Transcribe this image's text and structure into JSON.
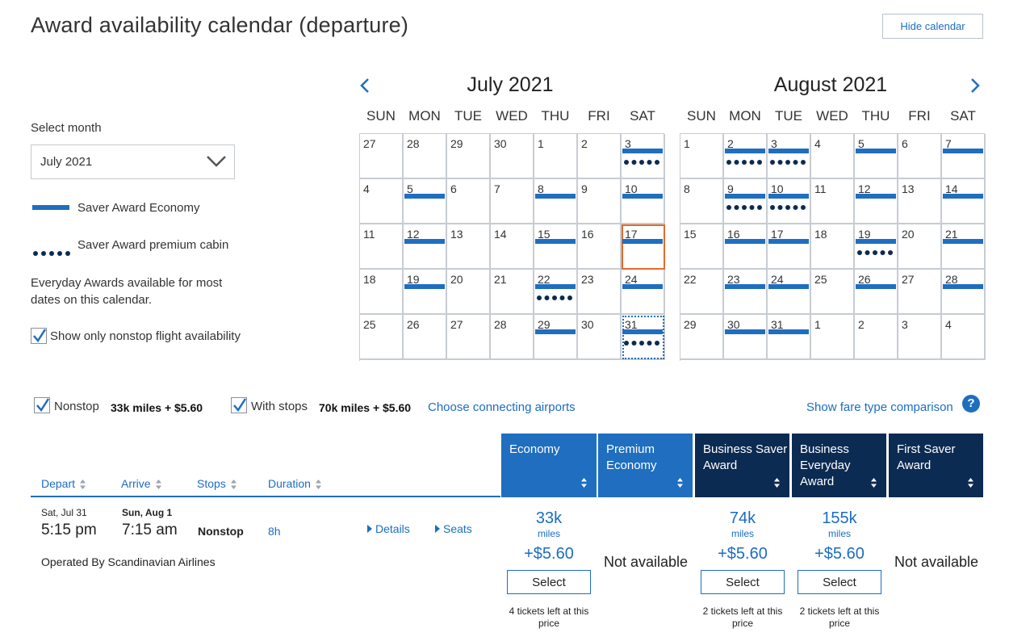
{
  "page": {
    "title": "Award availability calendar (departure)",
    "hide_calendar": "Hide calendar"
  },
  "sidebar": {
    "select_month_label": "Select month",
    "selected_month": "July 2021",
    "legend_economy": "Saver Award Economy",
    "legend_premium": "Saver Award premium cabin",
    "everyday_note": "Everyday Awards available for most dates on this calendar.",
    "nonstop_only": "Show only nonstop flight availability"
  },
  "colors": {
    "accent": "#1f6ebf",
    "dark_header": "#0c2b52",
    "selected_outline": "#e36a2c"
  },
  "calendar": {
    "weekdays": [
      "SUN",
      "MON",
      "TUE",
      "WED",
      "THU",
      "FRI",
      "SAT"
    ],
    "months": [
      {
        "title": "July 2021",
        "days": [
          {
            "d": "27",
            "e": false,
            "p": false
          },
          {
            "d": "28",
            "e": false,
            "p": false
          },
          {
            "d": "29",
            "e": false,
            "p": false
          },
          {
            "d": "30",
            "e": false,
            "p": false
          },
          {
            "d": "1",
            "e": false,
            "p": false
          },
          {
            "d": "2",
            "e": false,
            "p": false
          },
          {
            "d": "3",
            "e": true,
            "p": true
          },
          {
            "d": "4",
            "e": false,
            "p": false
          },
          {
            "d": "5",
            "e": true,
            "p": false
          },
          {
            "d": "6",
            "e": false,
            "p": false
          },
          {
            "d": "7",
            "e": false,
            "p": false
          },
          {
            "d": "8",
            "e": true,
            "p": false
          },
          {
            "d": "9",
            "e": false,
            "p": false
          },
          {
            "d": "10",
            "e": true,
            "p": false
          },
          {
            "d": "11",
            "e": false,
            "p": false
          },
          {
            "d": "12",
            "e": true,
            "p": false
          },
          {
            "d": "13",
            "e": false,
            "p": false
          },
          {
            "d": "14",
            "e": false,
            "p": false
          },
          {
            "d": "15",
            "e": true,
            "p": false
          },
          {
            "d": "16",
            "e": false,
            "p": false
          },
          {
            "d": "17",
            "e": true,
            "p": false,
            "selected": true
          },
          {
            "d": "18",
            "e": false,
            "p": false
          },
          {
            "d": "19",
            "e": true,
            "p": false
          },
          {
            "d": "20",
            "e": false,
            "p": false
          },
          {
            "d": "21",
            "e": false,
            "p": false
          },
          {
            "d": "22",
            "e": true,
            "p": true
          },
          {
            "d": "23",
            "e": false,
            "p": false
          },
          {
            "d": "24",
            "e": true,
            "p": false
          },
          {
            "d": "25",
            "e": false,
            "p": false
          },
          {
            "d": "26",
            "e": false,
            "p": false
          },
          {
            "d": "27",
            "e": false,
            "p": false
          },
          {
            "d": "28",
            "e": false,
            "p": false
          },
          {
            "d": "29",
            "e": true,
            "p": false
          },
          {
            "d": "30",
            "e": false,
            "p": false
          },
          {
            "d": "31",
            "e": true,
            "p": true,
            "focused": true
          }
        ]
      },
      {
        "title": "August 2021",
        "days": [
          {
            "d": "1",
            "e": false,
            "p": false
          },
          {
            "d": "2",
            "e": true,
            "p": true
          },
          {
            "d": "3",
            "e": true,
            "p": true
          },
          {
            "d": "4",
            "e": false,
            "p": false
          },
          {
            "d": "5",
            "e": true,
            "p": false
          },
          {
            "d": "6",
            "e": false,
            "p": false
          },
          {
            "d": "7",
            "e": true,
            "p": false
          },
          {
            "d": "8",
            "e": false,
            "p": false
          },
          {
            "d": "9",
            "e": true,
            "p": true
          },
          {
            "d": "10",
            "e": true,
            "p": true
          },
          {
            "d": "11",
            "e": false,
            "p": false
          },
          {
            "d": "12",
            "e": true,
            "p": false
          },
          {
            "d": "13",
            "e": false,
            "p": false
          },
          {
            "d": "14",
            "e": true,
            "p": false
          },
          {
            "d": "15",
            "e": false,
            "p": false
          },
          {
            "d": "16",
            "e": true,
            "p": false
          },
          {
            "d": "17",
            "e": true,
            "p": false
          },
          {
            "d": "18",
            "e": false,
            "p": false
          },
          {
            "d": "19",
            "e": true,
            "p": true
          },
          {
            "d": "20",
            "e": false,
            "p": false
          },
          {
            "d": "21",
            "e": true,
            "p": false
          },
          {
            "d": "22",
            "e": false,
            "p": false
          },
          {
            "d": "23",
            "e": true,
            "p": false
          },
          {
            "d": "24",
            "e": true,
            "p": false
          },
          {
            "d": "25",
            "e": false,
            "p": false
          },
          {
            "d": "26",
            "e": true,
            "p": false
          },
          {
            "d": "27",
            "e": false,
            "p": false
          },
          {
            "d": "28",
            "e": true,
            "p": false
          },
          {
            "d": "29",
            "e": false,
            "p": false
          },
          {
            "d": "30",
            "e": true,
            "p": false
          },
          {
            "d": "31",
            "e": true,
            "p": false
          },
          {
            "d": "1",
            "e": false,
            "p": false
          },
          {
            "d": "2",
            "e": false,
            "p": false
          },
          {
            "d": "3",
            "e": false,
            "p": false
          },
          {
            "d": "4",
            "e": false,
            "p": false
          }
        ]
      }
    ]
  },
  "filters": {
    "nonstop_label": "Nonstop",
    "nonstop_price": "33k miles + $5.60",
    "withstops_label": "With stops",
    "withstops_price": "70k miles + $5.60",
    "connecting_link": "Choose connecting airports",
    "comparison_link": "Show fare type comparison",
    "help": "?"
  },
  "columns": {
    "depart": "Depart",
    "arrive": "Arrive",
    "stops": "Stops",
    "duration": "Duration"
  },
  "fare_headers": [
    {
      "label": "Economy"
    },
    {
      "label": "Premium Economy"
    },
    {
      "label": "Business Saver Award"
    },
    {
      "label": "Business Everyday Award"
    },
    {
      "label": "First Saver Award"
    }
  ],
  "flight": {
    "depart_date": "Sat, Jul 31",
    "depart_time": "5:15 pm",
    "arrive_date": "Sun, Aug 1",
    "arrive_time": "7:15 am",
    "stops": "Nonstop",
    "duration": "8h",
    "details": "Details",
    "seats": "Seats",
    "operated_by": "Operated By Scandinavian Airlines",
    "fares": [
      {
        "miles": "33k",
        "unit": "miles",
        "tax": "+$5.60",
        "select": "Select",
        "left": "4 tickets left at this price"
      },
      {
        "na": "Not available"
      },
      {
        "miles": "74k",
        "unit": "miles",
        "tax": "+$5.60",
        "select": "Select",
        "left": "2 tickets left at this price"
      },
      {
        "miles": "155k",
        "unit": "miles",
        "tax": "+$5.60",
        "select": "Select",
        "left": "2 tickets left at this price"
      },
      {
        "na": "Not available"
      }
    ]
  }
}
